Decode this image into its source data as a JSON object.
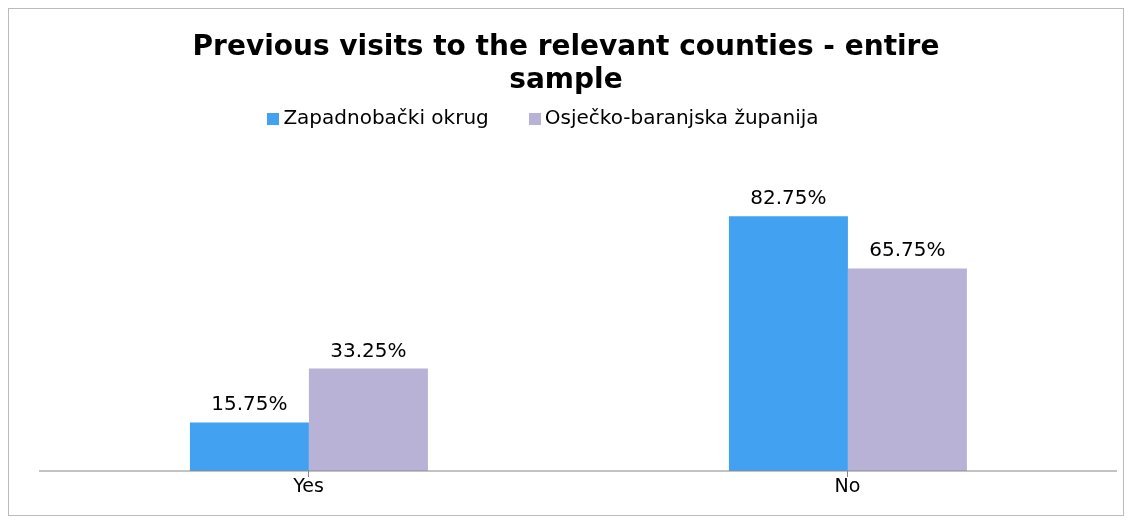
{
  "chart_data": {
    "type": "bar",
    "title": "Previous visits to the relevant counties - entire sample",
    "categories": [
      "Yes",
      "No"
    ],
    "series": [
      {
        "name": "Zapadnobački okrug",
        "color": "#42a1f0",
        "values": [
          15.75,
          82.75
        ],
        "value_labels": [
          "15.75%",
          "82.75%"
        ]
      },
      {
        "name": "Osječko-baranjska županija",
        "color": "#b8b2d6",
        "values": [
          33.25,
          65.75
        ],
        "value_labels": [
          "33.25%",
          "65.75%"
        ]
      }
    ],
    "legend": "top",
    "tick_labels": "x"
  }
}
